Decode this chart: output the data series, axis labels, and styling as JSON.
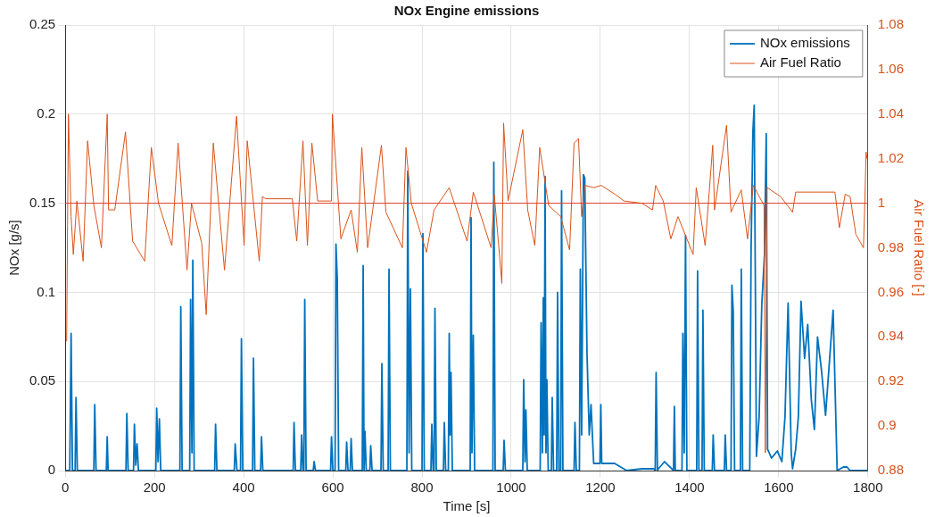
{
  "chart_data": {
    "type": "line",
    "title": "NOx Engine emissions",
    "xlabel": "Time [s]",
    "ylabel": "NOx [g/s]",
    "y2label": "Air Fuel Ratio [-]",
    "xlim": [
      0,
      1800
    ],
    "xticks": [
      0,
      200,
      400,
      600,
      800,
      1000,
      1200,
      1400,
      1600,
      1800
    ],
    "ylim": [
      0,
      0.25
    ],
    "yticks": [
      0,
      0.05,
      0.1,
      0.15,
      0.2,
      0.25
    ],
    "y2lim": [
      0.88,
      1.08
    ],
    "y2ticks": [
      0.88,
      0.9,
      0.92,
      0.94,
      0.96,
      0.98,
      1,
      1.02,
      1.04,
      1.06,
      1.08
    ],
    "grid": true,
    "legend": "top right",
    "marker": "none",
    "line_style": "solid",
    "ref_lines": [
      {
        "axis": "y2",
        "value": 1,
        "color": "#e03c2c"
      }
    ],
    "series": [
      {
        "name": "NOx emissions",
        "color": "#0072bd",
        "x": [
          0,
          10,
          13,
          16,
          22,
          24,
          27,
          64,
          66,
          69,
          92,
          94,
          96,
          136,
          138,
          141,
          153,
          155,
          158,
          161,
          164,
          203,
          205,
          208,
          211,
          214,
          257,
          259,
          262,
          279,
          281,
          284,
          286,
          289,
          335,
          337,
          340,
          379,
          381,
          385,
          393,
          395,
          398,
          420,
          422,
          425,
          438,
          440,
          443,
          511,
          513,
          516,
          528,
          530,
          533,
          535,
          537,
          540,
          556,
          558,
          561,
          595,
          597,
          600,
          605,
          607,
          610,
          613,
          629,
          631,
          634,
          639,
          641,
          644,
          666,
          668,
          670,
          672,
          675,
          683,
          685,
          688,
          708,
          710,
          713,
          724,
          726,
          729,
          766,
          768,
          771,
          774,
          777,
          800,
          802,
          805,
          820,
          822,
          825,
          827,
          829,
          832,
          848,
          850,
          853,
          859,
          861,
          863,
          865,
          868,
          908,
          910,
          912,
          915,
          918,
          959,
          961,
          964,
          982,
          984,
          987,
          1026,
          1028,
          1031,
          1033,
          1036,
          1065,
          1067,
          1070,
          1072,
          1074,
          1076,
          1078,
          1080,
          1083,
          1090,
          1092,
          1095,
          1102,
          1104,
          1107,
          1111,
          1113,
          1116,
          1141,
          1143,
          1146,
          1153,
          1155,
          1158,
          1162,
          1165,
          1170,
          1175,
          1179,
          1185,
          1199,
          1201,
          1203,
          1232,
          1259,
          1293,
          1320,
          1323,
          1325,
          1328,
          1330,
          1344,
          1364,
          1366,
          1368,
          1383,
          1385,
          1388,
          1391,
          1394,
          1416,
          1418,
          1421,
          1428,
          1430,
          1433,
          1451,
          1453,
          1456,
          1478,
          1480,
          1483,
          1493,
          1495,
          1498,
          1501,
          1514,
          1516,
          1519,
          1535,
          1538,
          1542,
          1545,
          1550,
          1556,
          1562,
          1568,
          1572,
          1575,
          1584,
          1597,
          1607,
          1614,
          1621,
          1628,
          1631,
          1638,
          1644,
          1650,
          1658,
          1665,
          1673,
          1680,
          1687,
          1696,
          1705,
          1722,
          1731,
          1745,
          1753,
          1760,
          1800
        ],
        "values": [
          0,
          0,
          0.077,
          0,
          0,
          0.041,
          0,
          0,
          0.037,
          0,
          0,
          0.019,
          0,
          0,
          0.032,
          0,
          0,
          0.026,
          0.003,
          0.015,
          0,
          0,
          0.035,
          0.005,
          0.029,
          0,
          0,
          0.092,
          0,
          0,
          0.096,
          0.01,
          0.118,
          0,
          0,
          0.026,
          0,
          0,
          0.015,
          0,
          0,
          0.074,
          0,
          0,
          0.063,
          0,
          0,
          0.019,
          0,
          0,
          0.027,
          0,
          0,
          0.02,
          0,
          0,
          0.096,
          0,
          0,
          0.005,
          0,
          0,
          0.019,
          0,
          0,
          0.127,
          0.107,
          0,
          0,
          0.016,
          0,
          0,
          0.018,
          0,
          0,
          0.115,
          0,
          0.022,
          0,
          0,
          0.014,
          0,
          0,
          0.06,
          0,
          0,
          0.113,
          0,
          0,
          0.168,
          0.01,
          0.102,
          0,
          0,
          0.133,
          0,
          0,
          0.026,
          0,
          0,
          0.091,
          0,
          0,
          0.027,
          0,
          0,
          0.077,
          0.02,
          0.055,
          0,
          0,
          0.142,
          0.01,
          0.076,
          0,
          0,
          0.173,
          0,
          0,
          0.017,
          0,
          0,
          0.051,
          0.005,
          0.034,
          0,
          0,
          0.083,
          0.01,
          0.097,
          0.02,
          0.165,
          0.01,
          0.051,
          0,
          0,
          0.041,
          0,
          0,
          0.1,
          0,
          0,
          0.157,
          0,
          0,
          0.027,
          0,
          0,
          0.113,
          0.02,
          0.166,
          0.164,
          0.066,
          0.02,
          0.037,
          0.004,
          0.004,
          0.037,
          0.004,
          0.004,
          0,
          0.001,
          0.001,
          0,
          0.055,
          0,
          0.001,
          0.005,
          0,
          0.036,
          0,
          0,
          0.077,
          0.01,
          0.132,
          0,
          0,
          0.112,
          0,
          0,
          0.09,
          0,
          0,
          0.02,
          0,
          0,
          0.02,
          0,
          0,
          0.104,
          0.089,
          0,
          0,
          0.113,
          0,
          0,
          0.124,
          0.19,
          0.205,
          0.008,
          0.03,
          0.093,
          0.121,
          0.189,
          0.012,
          0.007,
          0.011,
          0.005,
          0.03,
          0.094,
          0.01,
          0.001,
          0.012,
          0.03,
          0.095,
          0.063,
          0.082,
          0.04,
          0.023,
          0.075,
          0.056,
          0.031,
          0.09,
          0,
          0.002,
          0.002,
          0,
          0
        ]
      },
      {
        "name": "Air Fuel Ratio",
        "color": "#d95319",
        "axis": "y2",
        "x": [
          3,
          4,
          7,
          13,
          18,
          26,
          40,
          50,
          64,
          81,
          94,
          97,
          111,
          135,
          151,
          178,
          193,
          209,
          239,
          253,
          273,
          283,
          306,
          316,
          332,
          357,
          384,
          401,
          408,
          435,
          442,
          449,
          509,
          519,
          533,
          543,
          553,
          566,
          597,
          599,
          618,
          641,
          655,
          665,
          678,
          709,
          719,
          756,
          764,
          776,
          810,
          827,
          861,
          901,
          915,
          955,
          962,
          972,
          979,
          983,
          993,
          1026,
          1037,
          1053,
          1064,
          1084,
          1111,
          1131,
          1141,
          1151,
          1158,
          1165,
          1185,
          1202,
          1233,
          1253,
          1293,
          1317,
          1324,
          1341,
          1358,
          1374,
          1408,
          1415,
          1435,
          1452,
          1456,
          1483,
          1493,
          1516,
          1530,
          1543,
          1567,
          1570,
          1574,
          1604,
          1631,
          1638,
          1692,
          1726,
          1736,
          1749,
          1760,
          1773,
          1790,
          1793,
          1796,
          1798
        ],
        "values": [
          0.938,
          0.964,
          1.04,
          0.994,
          0.977,
          1.001,
          0.974,
          1.028,
          0.999,
          0.98,
          1.04,
          0.997,
          0.997,
          1.032,
          0.983,
          0.974,
          1.025,
          1.0,
          0.981,
          1.027,
          0.97,
          1.0,
          0.982,
          0.95,
          1.027,
          0.97,
          1.039,
          0.981,
          1.028,
          0.974,
          1.003,
          1.002,
          1.002,
          0.983,
          1.028,
          0.981,
          1.027,
          1.001,
          1.001,
          1.04,
          0.984,
          0.997,
          0.978,
          1.025,
          0.98,
          1.026,
          0.996,
          0.98,
          1.025,
          1.0,
          0.978,
          0.997,
          1.007,
          0.983,
          1.005,
          0.98,
          1.004,
          0.981,
          0.964,
          1.036,
          1.001,
          1.033,
          0.997,
          0.981,
          1.025,
          0.999,
          0.994,
          0.979,
          1.027,
          1.029,
          0.994,
          1.008,
          1.007,
          1.008,
          1.004,
          1.001,
          1.0,
          0.997,
          1.008,
          1.001,
          0.984,
          0.994,
          0.977,
          1.007,
          0.981,
          1.026,
          0.997,
          1.035,
          0.996,
          1.006,
          0.984,
          1.008,
          0.999,
          0.888,
          1.007,
          1.003,
          0.996,
          1.005,
          1.005,
          1.005,
          0.989,
          1.004,
          1.003,
          0.986,
          0.98,
          1.0,
          1.023,
          1.02
        ]
      }
    ]
  }
}
